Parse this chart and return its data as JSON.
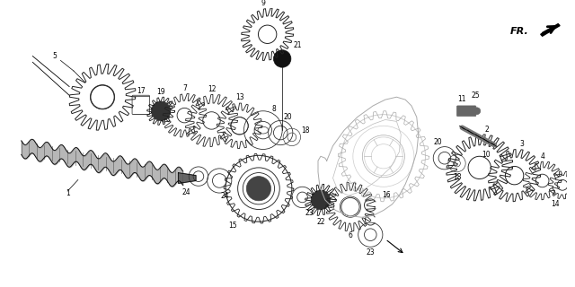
{
  "bg_color": "#ffffff",
  "fig_width": 6.4,
  "fig_height": 3.2,
  "dpi": 100,
  "line_color": "#000000",
  "label_fontsize": 5.5,
  "fr_text": "FR."
}
